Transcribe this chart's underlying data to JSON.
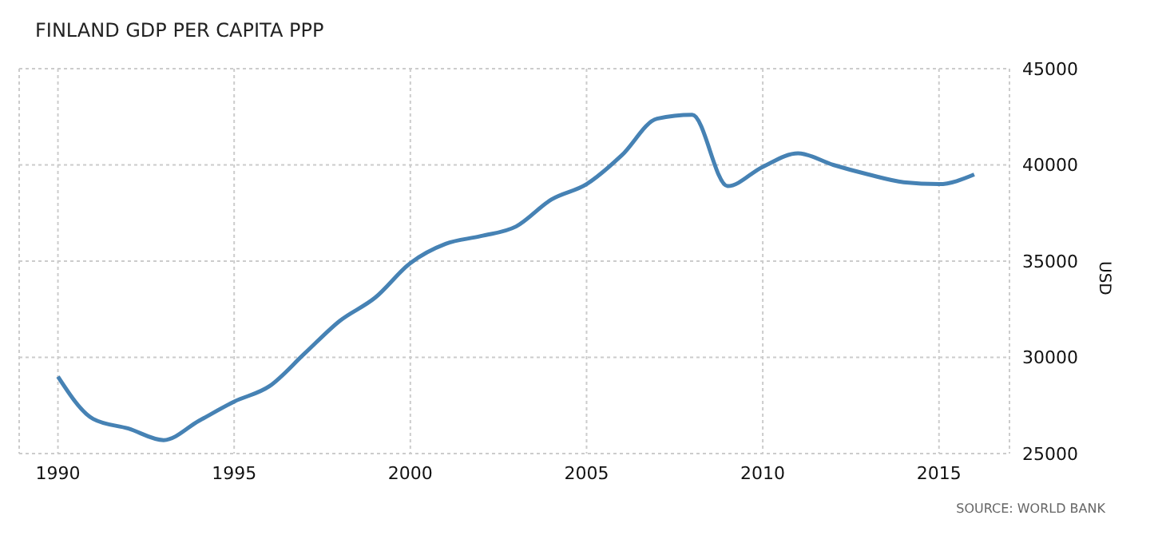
{
  "chart_data": {
    "type": "line",
    "title": "FINLAND GDP PER CAPITA PPP",
    "ylabel": "USD",
    "annotations": [
      "SOURCE: WORLD BANK"
    ],
    "x": [
      1990,
      1991,
      1992,
      1993,
      1994,
      1995,
      1996,
      1997,
      1998,
      1999,
      2000,
      2001,
      2002,
      2003,
      2004,
      2005,
      2006,
      2007,
      2008,
      2009,
      2010,
      2011,
      2012,
      2013,
      2014,
      2015,
      2016
    ],
    "series": [
      {
        "color": "#4682b4",
        "values": [
          29000,
          26800,
          26300,
          25700,
          26700,
          27700,
          28500,
          30200,
          31900,
          33100,
          34900,
          35900,
          36300,
          36800,
          38200,
          39000,
          40500,
          42400,
          42600,
          38900,
          39900,
          40600,
          40000,
          39500,
          39100,
          39000,
          39500
        ]
      }
    ],
    "xlim": [
      1988.9,
      2017
    ],
    "xticks": [
      1990,
      1995,
      2000,
      2005,
      2010,
      2015
    ],
    "ylim": [
      25000,
      45000
    ],
    "yticks": [
      25000,
      30000,
      35000,
      40000,
      45000
    ],
    "grid": true,
    "legend": false,
    "marker": "none",
    "line_style": "solid"
  }
}
